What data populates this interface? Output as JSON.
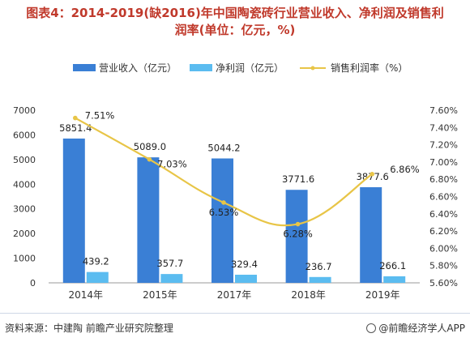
{
  "title_line1": "图表4：2014-2019(缺2016)年中国陶瓷砖行业营业收入、净利润及销售利",
  "title_line2": "润率(单位：亿元，%)",
  "source": "资料来源：中建陶 前瞻产业研究院整理",
  "credit": "@前瞻经济学人APP",
  "chart_data": {
    "type": "bar",
    "categories": [
      "2014年",
      "2015年",
      "2017年",
      "2018年",
      "2019年"
    ],
    "series": [
      {
        "name": "营业收入（亿元）",
        "type": "bar",
        "axis": "left",
        "color": "#3a7fd5",
        "values": [
          5851.4,
          5089.0,
          5044.2,
          3771.6,
          3877.6
        ],
        "labels": [
          "5851.4",
          "5089.0",
          "5044.2",
          "3771.6",
          "3877.6"
        ]
      },
      {
        "name": "净利润（亿元）",
        "type": "bar",
        "axis": "left",
        "color": "#5bbcf0",
        "values": [
          439.2,
          357.7,
          329.4,
          236.7,
          266.1
        ],
        "labels": [
          "439.2",
          "357.7",
          "329.4",
          "236.7",
          "266.1"
        ]
      },
      {
        "name": "销售利润率（%）",
        "type": "line",
        "axis": "right",
        "color": "#e8c547",
        "values": [
          7.51,
          7.03,
          6.53,
          6.28,
          6.86
        ],
        "labels": [
          "7.51%",
          "7.03%",
          "6.53%",
          "6.28%",
          "6.86%"
        ]
      }
    ],
    "ylim": [
      0,
      7000
    ],
    "y_ticks": [
      "0",
      "1000",
      "2000",
      "3000",
      "4000",
      "5000",
      "6000",
      "7000"
    ],
    "y2lim": [
      5.6,
      7.6
    ],
    "y2_ticks": [
      "5.60%",
      "5.80%",
      "6.00%",
      "6.20%",
      "6.40%",
      "6.60%",
      "6.80%",
      "7.00%",
      "7.20%",
      "7.40%",
      "7.60%"
    ],
    "legend": "top",
    "grid": false,
    "colors": {
      "bar1": "#3a7fd5",
      "bar2": "#5bbcf0",
      "line": "#e8c547",
      "title": "#c0392b"
    }
  }
}
